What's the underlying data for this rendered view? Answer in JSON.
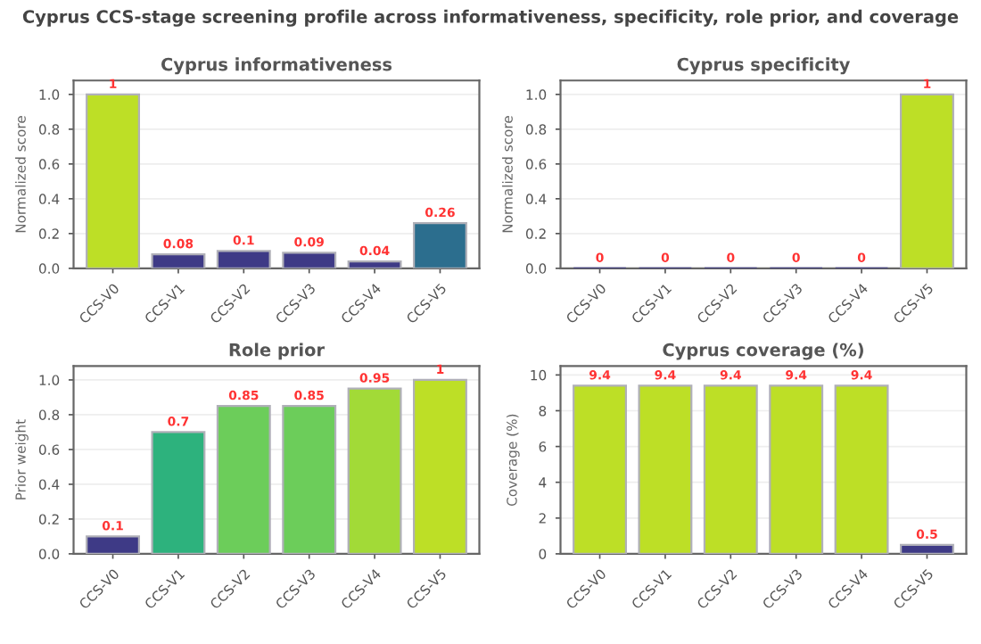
{
  "chart_data": [
    {
      "type": "bar",
      "title": "Cyprus informativeness",
      "ylabel": "Normalized score",
      "annotations": [
        "Cyprus CCS-stage screening profile across informativeness, specificity, role prior, and coverage"
      ],
      "categories": [
        "CCS-V0",
        "CCS-V1",
        "CCS-V2",
        "CCS-V3",
        "CCS-V4",
        "CCS-V5"
      ],
      "values": [
        1,
        0.08,
        0.1,
        0.09,
        0.04,
        0.26
      ],
      "colors": [
        "#bddf26",
        "#3e3a86",
        "#3e3a86",
        "#3e3a86",
        "#3e3a86",
        "#2c6e8e"
      ],
      "ylim": [
        0,
        1.08
      ],
      "yticks": [
        {
          "value": 0,
          "label": "0.0"
        },
        {
          "value": 0.2,
          "label": "0.2"
        },
        {
          "value": 0.4,
          "label": "0.4"
        },
        {
          "value": 0.6,
          "label": "0.6"
        },
        {
          "value": 0.8,
          "label": "0.8"
        },
        {
          "value": 1,
          "label": "1.0"
        }
      ],
      "grid": "y",
      "data_labels": true
    },
    {
      "type": "bar",
      "title": "Cyprus specificity",
      "ylabel": "Normalized score",
      "categories": [
        "CCS-V0",
        "CCS-V1",
        "CCS-V2",
        "CCS-V3",
        "CCS-V4",
        "CCS-V5"
      ],
      "values": [
        0,
        0,
        0,
        0,
        0,
        1
      ],
      "colors": [
        "#3e3a86",
        "#3e3a86",
        "#3e3a86",
        "#3e3a86",
        "#3e3a86",
        "#bddf26"
      ],
      "ylim": [
        0,
        1.08
      ],
      "yticks": [
        {
          "value": 0,
          "label": "0.0"
        },
        {
          "value": 0.2,
          "label": "0.2"
        },
        {
          "value": 0.4,
          "label": "0.4"
        },
        {
          "value": 0.6,
          "label": "0.6"
        },
        {
          "value": 0.8,
          "label": "0.8"
        },
        {
          "value": 1,
          "label": "1.0"
        }
      ],
      "grid": "y",
      "data_labels": true
    },
    {
      "type": "bar",
      "title": "Role prior",
      "ylabel": "Prior weight",
      "categories": [
        "CCS-V0",
        "CCS-V1",
        "CCS-V2",
        "CCS-V3",
        "CCS-V4",
        "CCS-V5"
      ],
      "values": [
        0.1,
        0.7,
        0.85,
        0.85,
        0.95,
        1
      ],
      "colors": [
        "#3e3a86",
        "#2db27d",
        "#6ccd5a",
        "#6ccd5a",
        "#a2da37",
        "#bddf26"
      ],
      "ylim": [
        0,
        1.08
      ],
      "yticks": [
        {
          "value": 0,
          "label": "0.0"
        },
        {
          "value": 0.2,
          "label": "0.2"
        },
        {
          "value": 0.4,
          "label": "0.4"
        },
        {
          "value": 0.6,
          "label": "0.6"
        },
        {
          "value": 0.8,
          "label": "0.8"
        },
        {
          "value": 1,
          "label": "1.0"
        }
      ],
      "grid": "y",
      "data_labels": true
    },
    {
      "type": "bar",
      "title": "Cyprus coverage (%)",
      "ylabel": "Coverage (%)",
      "categories": [
        "CCS-V0",
        "CCS-V1",
        "CCS-V2",
        "CCS-V3",
        "CCS-V4",
        "CCS-V5"
      ],
      "values": [
        9.4,
        9.4,
        9.4,
        9.4,
        9.4,
        0.5
      ],
      "colors": [
        "#bddf26",
        "#bddf26",
        "#bddf26",
        "#bddf26",
        "#bddf26",
        "#3e3a86"
      ],
      "ylim": [
        0,
        10.5
      ],
      "yticks": [
        0,
        2,
        4,
        6,
        8,
        10
      ],
      "grid": "y",
      "data_labels": true
    }
  ]
}
